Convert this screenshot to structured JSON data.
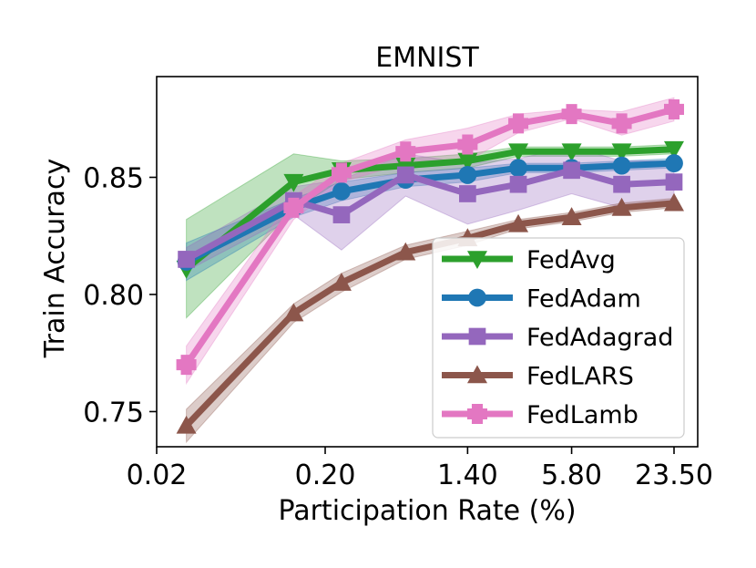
{
  "chart_data": {
    "type": "line",
    "title": "EMNIST",
    "xlabel": "Participation Rate (%)",
    "ylabel": "Train Accuracy",
    "xscale": "log",
    "xticks": [
      {
        "label": "0.02",
        "value": 0.02
      },
      {
        "label": "0.20",
        "value": 0.2
      },
      {
        "label": "1.40",
        "value": 1.4
      },
      {
        "label": "5.80",
        "value": 5.8
      },
      {
        "label": "23.50",
        "value": 23.5
      }
    ],
    "xlim": [
      0.02,
      23.5
    ],
    "ylim": [
      0.735,
      0.893
    ],
    "yticks": [
      {
        "label": "0.75",
        "value": 0.75
      },
      {
        "label": "0.80",
        "value": 0.8
      },
      {
        "label": "0.85",
        "value": 0.85
      }
    ],
    "x": [
      0.03,
      0.13,
      0.25,
      0.6,
      1.4,
      2.8,
      5.8,
      11.5,
      23.5
    ],
    "grid": false,
    "legend_position": "lower-right",
    "series": [
      {
        "name": "FedAvg",
        "color": "#2ca02c",
        "marker": "triangle-down",
        "x": [
          0.03,
          0.13,
          0.25,
          0.6,
          1.4,
          2.8,
          5.8,
          11.5,
          23.5
        ],
        "values": [
          0.811,
          0.848,
          0.853,
          0.855,
          0.857,
          0.861,
          0.861,
          0.861,
          0.862
        ],
        "lower": [
          0.79,
          0.836,
          0.849,
          0.852,
          0.854,
          0.859,
          0.859,
          0.859,
          0.86
        ],
        "upper": [
          0.832,
          0.86,
          0.857,
          0.858,
          0.86,
          0.863,
          0.863,
          0.863,
          0.864
        ]
      },
      {
        "name": "FedAdam",
        "color": "#1f77b4",
        "marker": "circle",
        "x": [
          0.03,
          0.13,
          0.25,
          0.6,
          1.4,
          2.8,
          5.8,
          11.5,
          23.5
        ],
        "values": [
          0.814,
          0.837,
          0.844,
          0.849,
          0.851,
          0.854,
          0.854,
          0.855,
          0.856
        ],
        "lower": [
          0.806,
          0.833,
          0.84,
          0.846,
          0.848,
          0.852,
          0.852,
          0.853,
          0.854
        ],
        "upper": [
          0.822,
          0.841,
          0.848,
          0.852,
          0.854,
          0.856,
          0.856,
          0.857,
          0.858
        ]
      },
      {
        "name": "FedAdagrad",
        "color": "#9467bd",
        "marker": "square",
        "x": [
          0.03,
          0.13,
          0.25,
          0.6,
          1.4,
          2.8,
          5.8,
          11.5,
          23.5
        ],
        "values": [
          0.815,
          0.84,
          0.834,
          0.851,
          0.843,
          0.847,
          0.853,
          0.847,
          0.848
        ],
        "lower": [
          0.81,
          0.834,
          0.819,
          0.842,
          0.83,
          0.836,
          0.843,
          0.837,
          0.839
        ],
        "upper": [
          0.82,
          0.846,
          0.849,
          0.86,
          0.856,
          0.858,
          0.863,
          0.857,
          0.857
        ]
      },
      {
        "name": "FedLARS",
        "color": "#8c564b",
        "marker": "triangle-up",
        "x": [
          0.03,
          0.13,
          0.25,
          0.6,
          1.4,
          2.8,
          5.8,
          11.5,
          23.5
        ],
        "values": [
          0.744,
          0.792,
          0.805,
          0.818,
          0.824,
          0.83,
          0.833,
          0.837,
          0.839
        ],
        "lower": [
          0.737,
          0.788,
          0.801,
          0.815,
          0.821,
          0.828,
          0.831,
          0.835,
          0.837
        ],
        "upper": [
          0.751,
          0.796,
          0.809,
          0.821,
          0.827,
          0.832,
          0.835,
          0.839,
          0.841
        ]
      },
      {
        "name": "FedLamb",
        "color": "#e377c2",
        "marker": "plus",
        "x": [
          0.03,
          0.13,
          0.25,
          0.6,
          1.4,
          2.8,
          5.8,
          11.5,
          23.5
        ],
        "values": [
          0.77,
          0.837,
          0.852,
          0.861,
          0.864,
          0.873,
          0.877,
          0.873,
          0.879
        ],
        "lower": [
          0.762,
          0.832,
          0.848,
          0.856,
          0.857,
          0.869,
          0.875,
          0.868,
          0.874
        ],
        "upper": [
          0.778,
          0.842,
          0.856,
          0.866,
          0.871,
          0.877,
          0.879,
          0.878,
          0.884
        ]
      }
    ]
  }
}
